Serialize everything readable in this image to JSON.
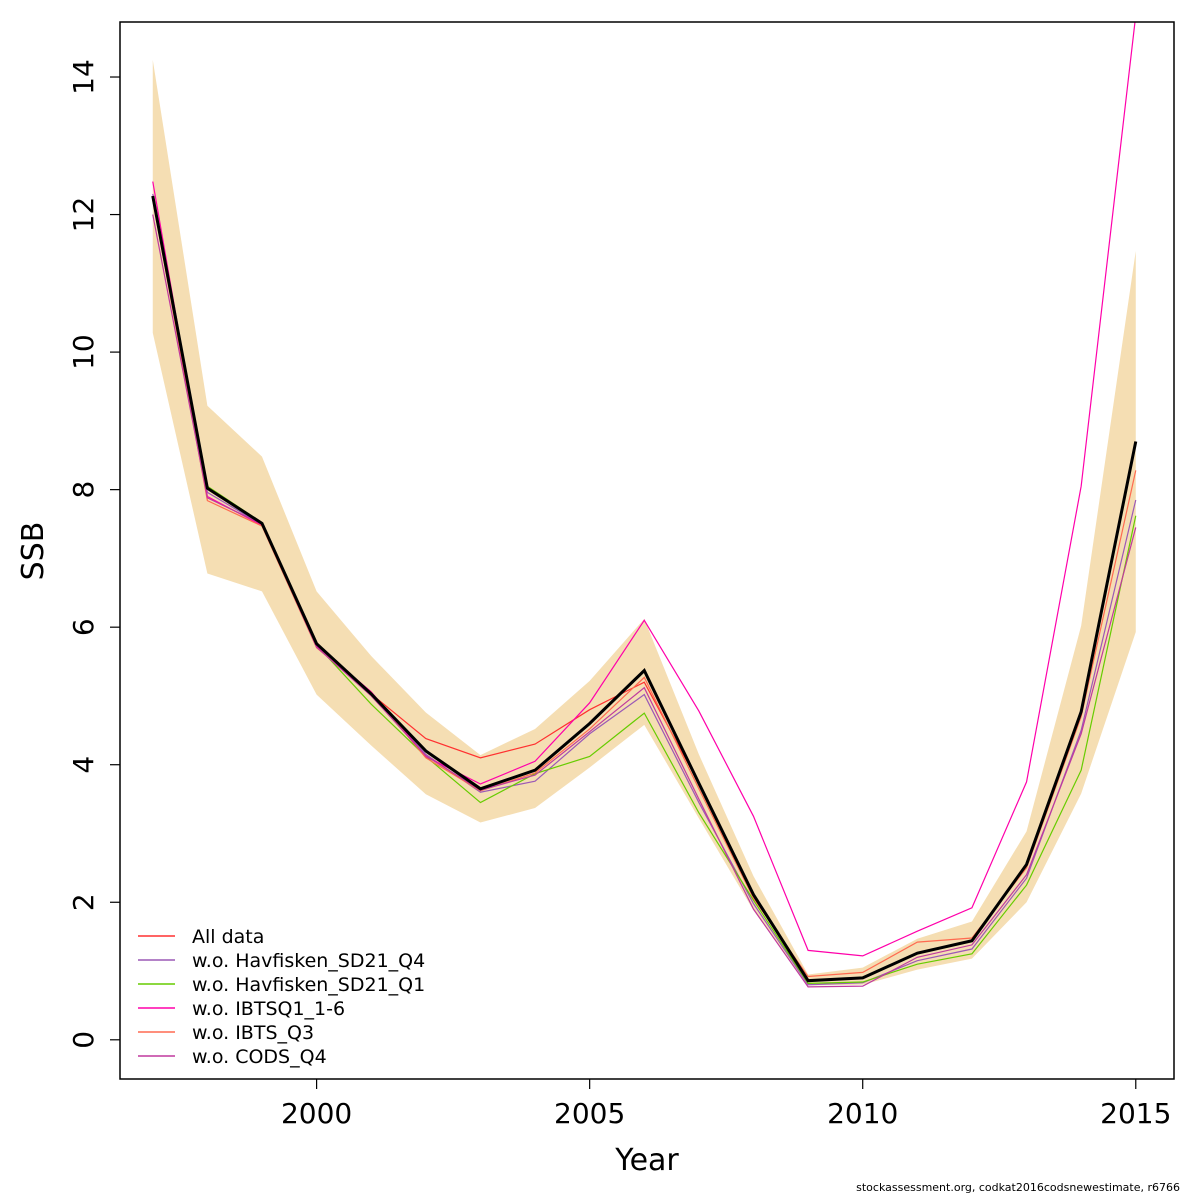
{
  "chart_data": {
    "type": "line",
    "xlabel": "Year",
    "ylabel": "SSB",
    "xlim": [
      1996.4,
      2015.7
    ],
    "ylim": [
      -0.57,
      14.8
    ],
    "xticks": [
      2000,
      2005,
      2010,
      2015
    ],
    "yticks": [
      0,
      2,
      4,
      6,
      8,
      10,
      12,
      14
    ],
    "x": [
      1997,
      1998,
      1999,
      2000,
      2001,
      2002,
      2003,
      2004,
      2005,
      2006,
      2007,
      2008,
      2009,
      2010,
      2011,
      2012,
      2013,
      2014,
      2015
    ],
    "confidence_band": {
      "color": "#F5DEB3",
      "lower": [
        10.28,
        6.78,
        6.52,
        5.02,
        4.28,
        3.57,
        3.16,
        3.37,
        3.96,
        4.58,
        3.22,
        1.88,
        0.79,
        0.8,
        1.02,
        1.18,
        2.0,
        3.58,
        5.93
      ],
      "upper": [
        14.25,
        9.22,
        8.48,
        6.52,
        5.58,
        4.76,
        4.14,
        4.52,
        5.22,
        6.12,
        4.15,
        2.38,
        0.95,
        1.05,
        1.47,
        1.72,
        3.03,
        6.02,
        11.47
      ]
    },
    "estimate": {
      "color": "#000000",
      "values": [
        12.27,
        8.02,
        7.51,
        5.76,
        5.03,
        4.2,
        3.65,
        3.92,
        4.6,
        5.37,
        3.73,
        2.11,
        0.86,
        0.9,
        1.26,
        1.44,
        2.55,
        4.77,
        8.7
      ]
    },
    "series": [
      {
        "name": "All data",
        "color": "#FF3030",
        "values": [
          12.27,
          8.02,
          7.51,
          5.76,
          5.03,
          4.38,
          4.1,
          4.3,
          4.8,
          5.2,
          3.73,
          2.11,
          0.86,
          0.9,
          1.26,
          1.44,
          2.55,
          4.77,
          8.7
        ]
      },
      {
        "name": "w.o. Havfisken_SD21_Q4",
        "color": "#9B59B6",
        "values": [
          12.3,
          7.96,
          7.49,
          5.72,
          5.01,
          4.15,
          3.6,
          3.76,
          4.45,
          5.02,
          3.45,
          1.98,
          0.8,
          0.83,
          1.15,
          1.32,
          2.35,
          4.5,
          7.85
        ]
      },
      {
        "name": "w.o. Havfisken_SD21_Q1",
        "color": "#66CC00",
        "values": [
          12.25,
          8.05,
          7.52,
          5.74,
          4.88,
          4.12,
          3.45,
          3.87,
          4.12,
          4.75,
          3.3,
          2.03,
          0.82,
          0.84,
          1.1,
          1.25,
          2.25,
          3.92,
          7.62
        ]
      },
      {
        "name": "w.o. IBTSQ1_1-6",
        "color": "#FF00AA",
        "values": [
          12.48,
          7.9,
          7.48,
          5.73,
          5.06,
          4.12,
          3.72,
          4.05,
          4.9,
          6.1,
          4.78,
          3.25,
          1.3,
          1.22,
          1.58,
          1.92,
          3.75,
          8.05,
          14.9
        ]
      },
      {
        "name": "w.o. IBTS_Q3",
        "color": "#FF6A50",
        "values": [
          12.22,
          7.84,
          7.47,
          5.7,
          5.05,
          4.1,
          3.62,
          3.88,
          4.52,
          5.27,
          3.65,
          2.06,
          0.92,
          0.98,
          1.42,
          1.48,
          2.5,
          4.7,
          8.28
        ]
      },
      {
        "name": "w.o. CODS_Q4",
        "color": "#C0399E",
        "values": [
          12.0,
          7.88,
          7.5,
          5.71,
          5.0,
          4.13,
          3.63,
          3.85,
          4.48,
          5.12,
          3.5,
          1.9,
          0.77,
          0.78,
          1.2,
          1.38,
          2.4,
          4.45,
          7.45
        ]
      }
    ],
    "legend": "bottom-left",
    "grid": false
  },
  "footer": "stockassessment.org, codkat2016codsnewestimate, r6766"
}
